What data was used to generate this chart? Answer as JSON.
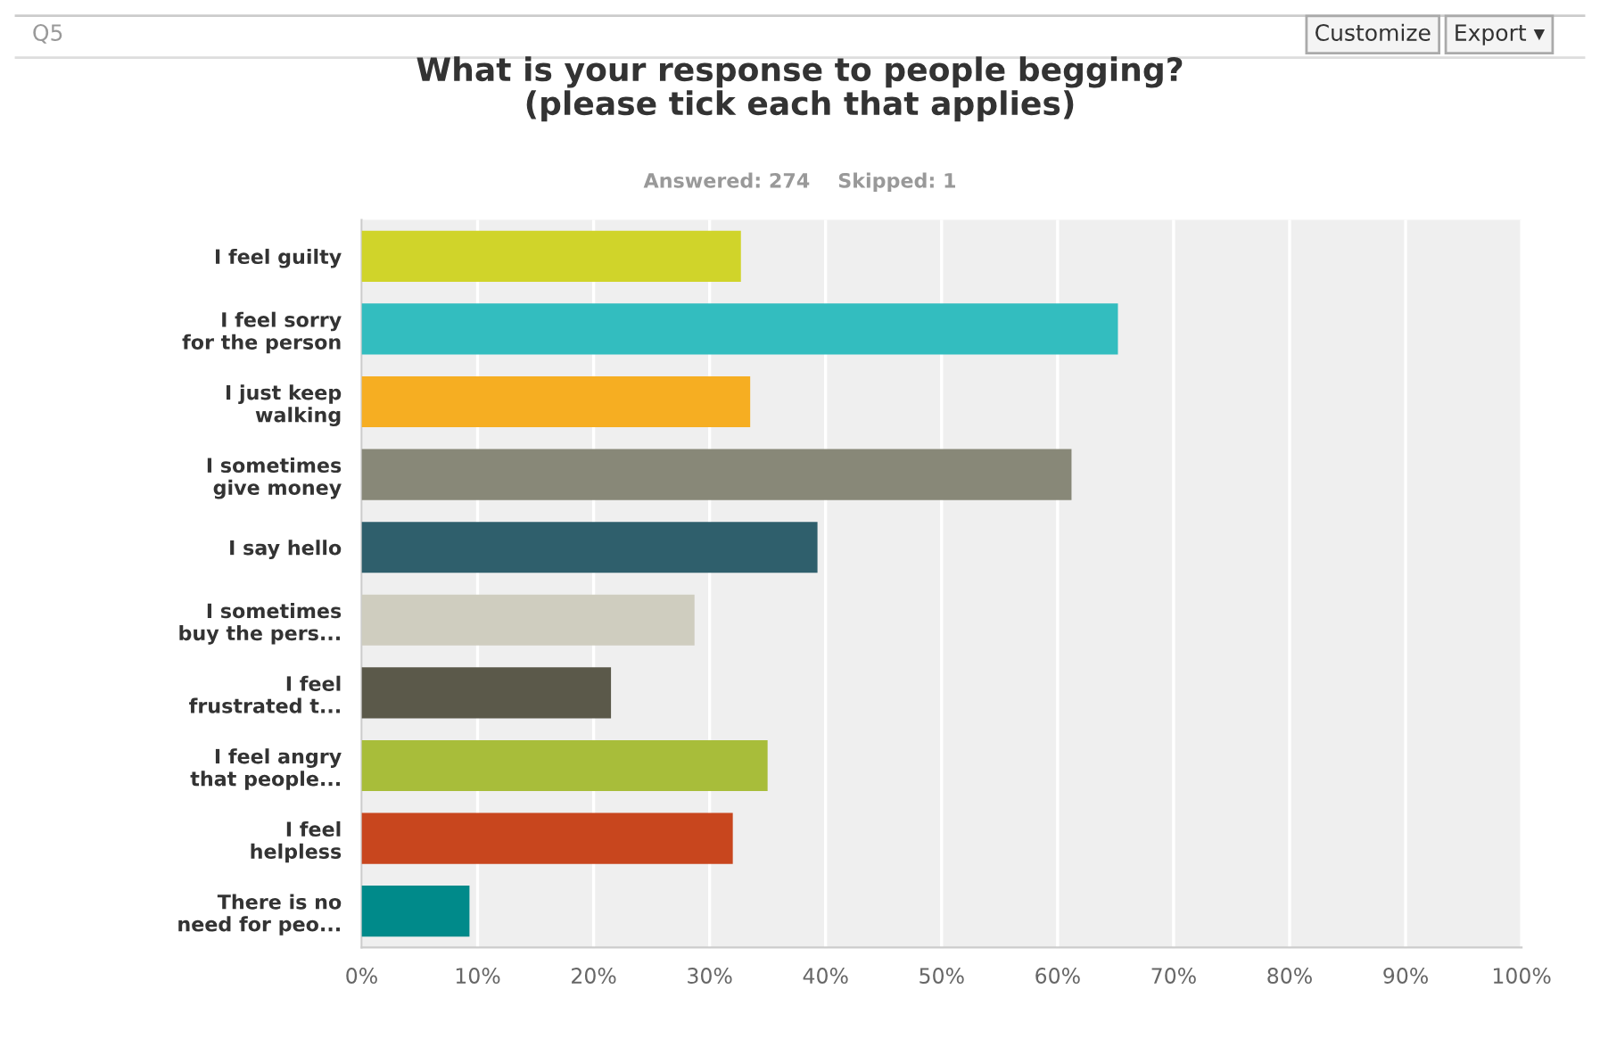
{
  "chart_data": {
    "type": "bar",
    "orientation": "horizontal",
    "title": "What is your response to people begging?\n(please tick each that applies)",
    "subtitle": "Answered: 274    Skipped: 1",
    "annotations": [
      "Q5",
      "Customize",
      "Export ▾"
    ],
    "categories": [
      "I feel guilty",
      "I feel sorry\nfor the person",
      "I just keep\nwalking",
      "I sometimes\ngive money",
      "I say hello",
      "I sometimes\nbuy the pers...",
      "I feel\nfrustrated t...",
      "I feel angry\nthat people...",
      "I feel\nhelpless",
      "There is no\nneed for peo..."
    ],
    "values": [
      32.7,
      65.2,
      33.5,
      61.2,
      39.3,
      28.7,
      21.5,
      35.0,
      32.0,
      9.3
    ],
    "colors": [
      "#d0d42a",
      "#33bdbf",
      "#f6ae22",
      "#888878",
      "#2f5f6c",
      "#cfcdbf",
      "#5b594a",
      "#a8bd3a",
      "#c8461e",
      "#008a8a"
    ],
    "xlim": [
      0,
      100
    ],
    "xticks": [
      {
        "value": 0,
        "label": "0%"
      },
      {
        "value": 10,
        "label": "10%"
      },
      {
        "value": 20,
        "label": "20%"
      },
      {
        "value": 30,
        "label": "30%"
      },
      {
        "value": 40,
        "label": "40%"
      },
      {
        "value": 50,
        "label": "50%"
      },
      {
        "value": 60,
        "label": "60%"
      },
      {
        "value": 70,
        "label": "70%"
      },
      {
        "value": 80,
        "label": "80%"
      },
      {
        "value": 90,
        "label": "90%"
      },
      {
        "value": 100,
        "label": "100%"
      }
    ],
    "grid": "x"
  }
}
